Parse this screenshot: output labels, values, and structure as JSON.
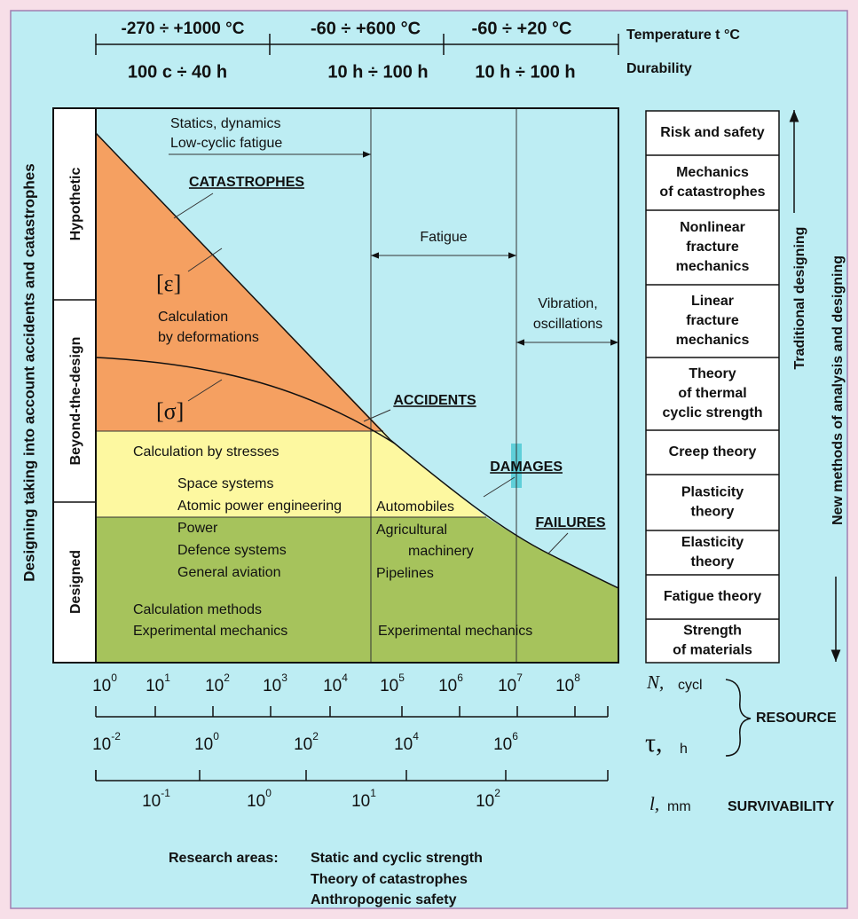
{
  "header": {
    "temperature": {
      "ranges": [
        "-270 ÷ +1000 °C",
        "-60  ÷  +600 °C",
        "-60  ÷  +20 °C"
      ],
      "label": "Temperature t °C"
    },
    "durability": {
      "ranges": [
        "100 c ÷ 40 h",
        "10 h  ÷ 100 h",
        "10 h  ÷ 100 h"
      ],
      "label": "Durability"
    }
  },
  "side_title": "Designing taking into account accidents and catastrophes",
  "levels": [
    "Hypothetic",
    "Beyond-the-design",
    "Designed"
  ],
  "plot": {
    "statics": [
      "Statics, dynamics",
      "Low-cyclic fatigue"
    ],
    "fatigue": "Fatigue",
    "vibration": [
      "Vibration,",
      "oscillations"
    ],
    "catastrophes": "CATASTROPHES",
    "accidents": "ACCIDENTS",
    "damages": "DAMAGES",
    "failures": "FAILURES",
    "epsilon": "[ε]",
    "sigma": "[σ]",
    "deformations": [
      "Calculation",
      "by deformations"
    ],
    "stresses": "Calculation by stresses",
    "left_items": [
      "Space systems",
      "Atomic power engineering",
      "Power",
      "Defence systems",
      "General aviation"
    ],
    "mid_items": [
      "Automobiles",
      "Agricultural",
      "machinery",
      "Pipelines"
    ],
    "methods": [
      "Calculation methods",
      "Experimental mechanics"
    ],
    "mid_methods": "Experimental mechanics"
  },
  "theories": [
    [
      "Risk and safety"
    ],
    [
      "Mechanics",
      "of catastrophes"
    ],
    [
      "Nonlinear",
      "fracture",
      "mechanics"
    ],
    [
      "Linear",
      "fracture",
      "mechanics"
    ],
    [
      "Theory",
      "of thermal",
      "cyclic strength"
    ],
    [
      "Creep theory"
    ],
    [
      "Plasticity",
      "theory"
    ],
    [
      "Elasticity",
      "theory"
    ],
    [
      "Fatigue theory"
    ],
    [
      "Strength",
      "of materials"
    ]
  ],
  "traditional": "Traditional designing",
  "new_methods": "New methods of analysis and designing",
  "axes": {
    "n": {
      "ticks": [
        [
          "10",
          "0"
        ],
        [
          "10",
          "1"
        ],
        [
          "10",
          "2"
        ],
        [
          "10",
          "3"
        ],
        [
          "10",
          "4"
        ],
        [
          "10",
          "5"
        ],
        [
          "10",
          "6"
        ],
        [
          "10",
          "7"
        ],
        [
          "10",
          "8"
        ]
      ],
      "symbol": "N,",
      "unit": "cycl"
    },
    "tau": {
      "ticks": [
        [
          "10",
          "-2"
        ],
        [
          "10",
          "0"
        ],
        [
          "10",
          "2"
        ],
        [
          "10",
          "4"
        ],
        [
          "10",
          "6"
        ]
      ],
      "symbol": "τ,",
      "unit": "h"
    },
    "l": {
      "ticks": [
        [
          "10",
          "-1"
        ],
        [
          "10",
          "0"
        ],
        [
          "10",
          "1"
        ],
        [
          "10",
          "2"
        ]
      ],
      "symbol": "l,",
      "unit": "mm"
    },
    "resource": "RESOURCE",
    "survivability": "SURVIVABILITY"
  },
  "research": {
    "label": "Research areas:",
    "items": [
      "Static and cyclic strength",
      "Theory of catastrophes",
      "Anthropogenic safety"
    ]
  }
}
